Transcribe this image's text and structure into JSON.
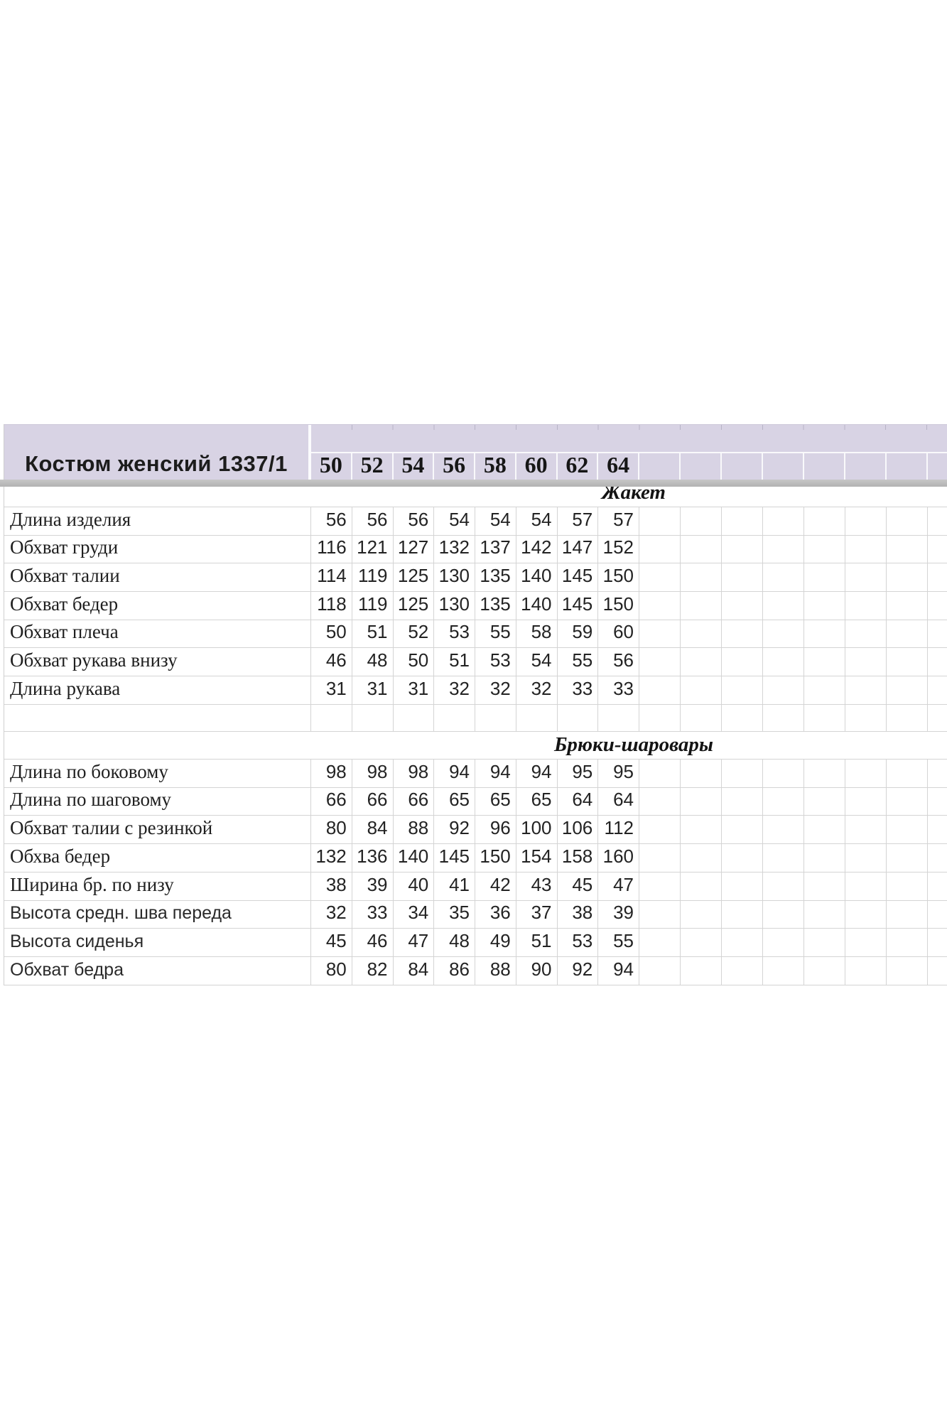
{
  "header": {
    "title": "Костюм женский 1337/1",
    "sizes": [
      "50",
      "52",
      "54",
      "56",
      "58",
      "60",
      "62",
      "64"
    ]
  },
  "sections": [
    {
      "title": "Жакет",
      "rows": [
        {
          "label": "Длина изделия",
          "values": [
            56,
            56,
            56,
            54,
            54,
            54,
            57,
            57
          ]
        },
        {
          "label": "Обхват груди",
          "values": [
            116,
            121,
            127,
            132,
            137,
            142,
            147,
            152
          ]
        },
        {
          "label": "Обхват талии",
          "values": [
            114,
            119,
            125,
            130,
            135,
            140,
            145,
            150
          ]
        },
        {
          "label": "Обхват бедер",
          "values": [
            118,
            119,
            125,
            130,
            135,
            140,
            145,
            150
          ]
        },
        {
          "label": "Обхват плеча",
          "values": [
            50,
            51,
            52,
            53,
            55,
            58,
            59,
            60
          ]
        },
        {
          "label": "Обхват рукава внизу",
          "values": [
            46,
            48,
            50,
            51,
            53,
            54,
            55,
            56
          ]
        },
        {
          "label": "Длина рукава",
          "values": [
            31,
            31,
            31,
            32,
            32,
            32,
            33,
            33
          ]
        }
      ]
    },
    {
      "title": "Брюки-шаровары",
      "rows": [
        {
          "label": "Длина по боковому",
          "values": [
            98,
            98,
            98,
            94,
            94,
            94,
            95,
            95
          ]
        },
        {
          "label": "Длина по шаговому",
          "values": [
            66,
            66,
            66,
            65,
            65,
            65,
            64,
            64
          ]
        },
        {
          "label": "Обхват талии с резинкой",
          "values": [
            80,
            84,
            88,
            92,
            96,
            100,
            106,
            112
          ]
        },
        {
          "label": "Обхва бедер",
          "values": [
            132,
            136,
            140,
            145,
            150,
            154,
            158,
            160
          ]
        },
        {
          "label": "Ширина бр. по низу",
          "values": [
            38,
            39,
            40,
            41,
            42,
            43,
            45,
            47
          ]
        },
        {
          "label": "Высота средн. шва переда",
          "values": [
            32,
            33,
            34,
            35,
            36,
            37,
            38,
            39
          ],
          "alt_label": true
        },
        {
          "label": "Высота сиденья",
          "values": [
            45,
            46,
            47,
            48,
            49,
            51,
            53,
            55
          ],
          "alt_label": true
        },
        {
          "label": "Обхват бедра",
          "values": [
            80,
            82,
            84,
            86,
            88,
            90,
            92,
            94
          ],
          "alt_label": true
        }
      ]
    }
  ],
  "colors": {
    "header_background": "#d8d3e4",
    "freeze_bar": "#bcbcbc",
    "grid_line": "#d4d4d4",
    "text": "#1f1f1f"
  }
}
